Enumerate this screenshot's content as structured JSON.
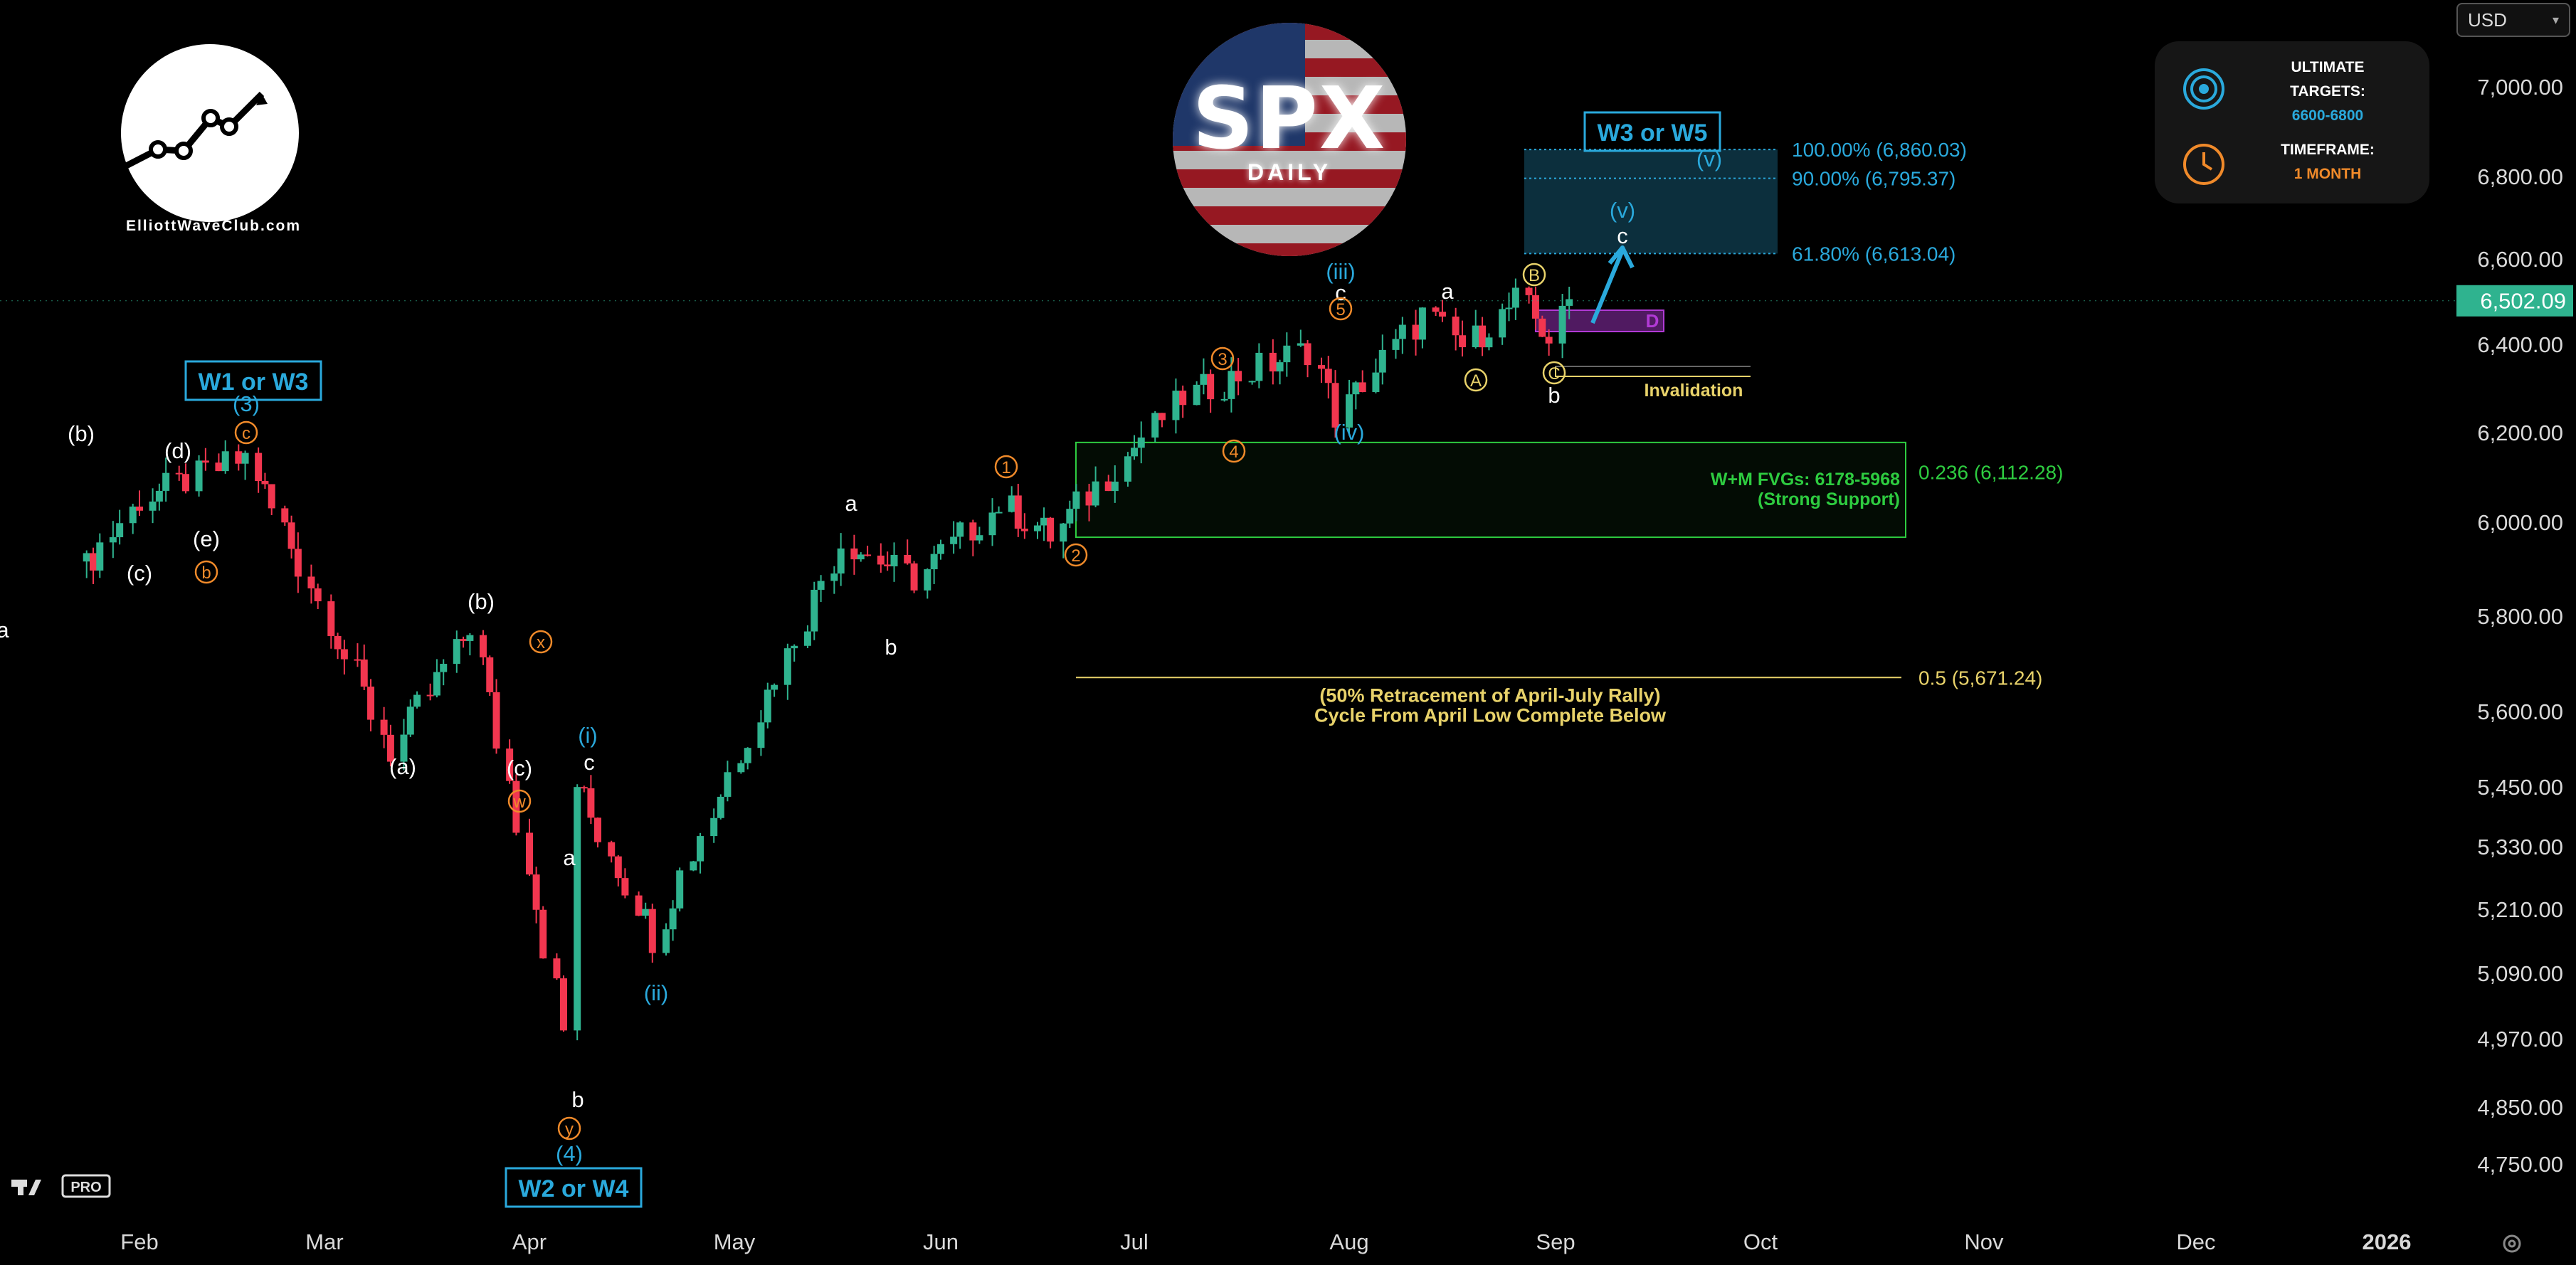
{
  "header": {
    "currency": "USD",
    "logo_text": "ElliottWaveClub.com",
    "spx_title": "SPX",
    "spx_subtitle": "DAILY",
    "tv_badge": "PRO"
  },
  "targets_panel": {
    "targets_label_line1": "ULTIMATE",
    "targets_label_line2": "TARGETS:",
    "targets_value": "6600-6800",
    "timeframe_label": "TIMEFRAME:",
    "timeframe_value": "1 MONTH"
  },
  "colors": {
    "background": "#000000",
    "bull_candle": "#2fb38f",
    "bear_candle": "#f2364f",
    "cyan": "#2aa9dc",
    "orange": "#f08a2a",
    "yellow": "#e8d26a",
    "green": "#2ecc40",
    "magenta": "#b23ad6"
  },
  "chart_data": {
    "type": "candlestick",
    "x_axis_labels": [
      "Feb",
      "Mar",
      "Apr",
      "May",
      "Jun",
      "Jul",
      "Aug",
      "Sep",
      "Oct",
      "Nov",
      "Dec",
      "2026"
    ],
    "y_axis_labels": [
      "7,000.00",
      "6,800.00",
      "6,600.00",
      "6,400.00",
      "6,200.00",
      "6,000.00",
      "5,800.00",
      "5,600.00",
      "5,450.00",
      "5,330.00",
      "5,210.00",
      "5,090.00",
      "4,970.00",
      "4,850.00",
      "4,750.00"
    ],
    "y_axis_values": [
      7000,
      6800,
      6600,
      6400,
      6200,
      6000,
      5800,
      5600,
      5450,
      5330,
      5210,
      5090,
      4970,
      4850,
      4750
    ],
    "scale": "log",
    "last_price": "6,502.09",
    "last_value": 6502.09,
    "series": [
      {
        "date": "2025-01-24",
        "close": 5880
      },
      {
        "date": "2025-02-03",
        "close": 6050
      },
      {
        "date": "2025-02-19",
        "close": 6144
      },
      {
        "date": "2025-03-13",
        "close": 5520
      },
      {
        "date": "2025-03-25",
        "close": 5780
      },
      {
        "date": "2025-04-08",
        "close": 4982
      },
      {
        "date": "2025-04-09",
        "close": 5456
      },
      {
        "date": "2025-04-21",
        "close": 5158
      },
      {
        "date": "2025-05-19",
        "close": 5960
      },
      {
        "date": "2025-05-30",
        "close": 5880
      },
      {
        "date": "2025-06-12",
        "close": 6040
      },
      {
        "date": "2025-06-20",
        "close": 5970
      },
      {
        "date": "2025-07-10",
        "close": 6280
      },
      {
        "date": "2025-07-28",
        "close": 6390
      },
      {
        "date": "2025-08-01",
        "close": 6238
      },
      {
        "date": "2025-08-14",
        "close": 6469
      },
      {
        "date": "2025-08-20",
        "close": 6395
      },
      {
        "date": "2025-08-28",
        "close": 6502
      },
      {
        "date": "2025-09-02",
        "close": 6415
      },
      {
        "date": "2025-09-05",
        "close": 6502
      }
    ],
    "fib_levels": [
      {
        "label": "100.00% (6,860.03)",
        "value": 6860.03
      },
      {
        "label": "90.00% (6,795.37)",
        "value": 6795.37
      },
      {
        "label": "61.80% (6,613.04)",
        "value": 6613.04
      },
      {
        "label": "0.236 (6,112.28)",
        "value": 6112.28
      },
      {
        "label": "0.5 (5,671.24)",
        "value": 5671.24
      }
    ],
    "zones": [
      {
        "name": "target",
        "label": "W3 or W5",
        "from": 6613.04,
        "to": 6860.03
      },
      {
        "name": "fvg",
        "label": "W+M FVGs: 6178-5968",
        "sublabel": "(Strong Support)",
        "from": 5968,
        "to": 6178
      },
      {
        "name": "d-box",
        "label": "D",
        "from": 6430,
        "to": 6480
      }
    ],
    "invalidation": {
      "label": "Invalidation",
      "value": 6350
    },
    "retracement_note_line1": "(50% Retracement of April-July Rally)",
    "retracement_note_line2": "Cycle From April Low Complete Below",
    "wave_boxes": [
      "W1 or W3",
      "W2 or W4",
      "W3 or W5"
    ],
    "wave_labels": [
      {
        "t": "a",
        "c": "#ffffff"
      },
      {
        "t": "(b)",
        "c": "#ffffff"
      },
      {
        "t": "(c)",
        "c": "#ffffff"
      },
      {
        "t": "(d)",
        "c": "#ffffff"
      },
      {
        "t": "(e)",
        "c": "#ffffff"
      },
      {
        "t": "(3)",
        "c": "#2aa9dc"
      },
      {
        "t": "c",
        "c": "#f08a2a"
      },
      {
        "t": "b",
        "c": "#f08a2a"
      },
      {
        "t": "(a)",
        "c": "#ffffff"
      },
      {
        "t": "(b)",
        "c": "#ffffff"
      },
      {
        "t": "x",
        "c": "#f08a2a"
      },
      {
        "t": "(c)",
        "c": "#ffffff"
      },
      {
        "t": "w",
        "c": "#f08a2a"
      },
      {
        "t": "(i)",
        "c": "#2aa9dc"
      },
      {
        "t": "c",
        "c": "#ffffff"
      },
      {
        "t": "a",
        "c": "#ffffff"
      },
      {
        "t": "b",
        "c": "#ffffff"
      },
      {
        "t": "y",
        "c": "#f08a2a"
      },
      {
        "t": "(4)",
        "c": "#2aa9dc"
      },
      {
        "t": "(ii)",
        "c": "#2aa9dc"
      },
      {
        "t": "a",
        "c": "#ffffff"
      },
      {
        "t": "b",
        "c": "#ffffff"
      },
      {
        "t": "1",
        "c": "#f08a2a"
      },
      {
        "t": "2",
        "c": "#f08a2a"
      },
      {
        "t": "3",
        "c": "#f08a2a"
      },
      {
        "t": "4",
        "c": "#f08a2a"
      },
      {
        "t": "(iii)",
        "c": "#2aa9dc"
      },
      {
        "t": "c",
        "c": "#ffffff"
      },
      {
        "t": "5",
        "c": "#f08a2a"
      },
      {
        "t": "(iv)",
        "c": "#2aa9dc"
      },
      {
        "t": "a",
        "c": "#ffffff"
      },
      {
        "t": "A",
        "c": "#e8d26a"
      },
      {
        "t": "B",
        "c": "#e8d26a"
      },
      {
        "t": "C",
        "c": "#e8d26a"
      },
      {
        "t": "b",
        "c": "#ffffff"
      },
      {
        "t": "(v)",
        "c": "#2aa9dc"
      },
      {
        "t": "c",
        "c": "#ffffff"
      },
      {
        "t": "(v)",
        "c": "#2aa9dc"
      }
    ],
    "title": "",
    "xlabel": "",
    "ylabel": ""
  }
}
